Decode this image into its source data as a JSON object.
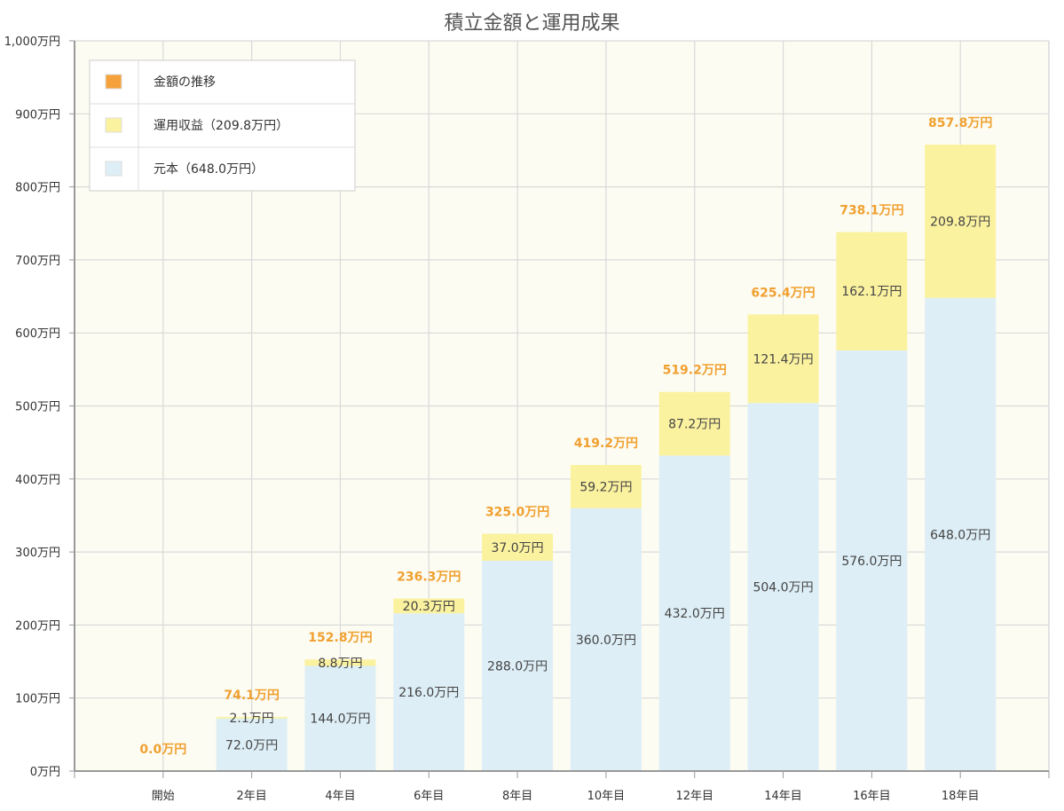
{
  "chart_data": {
    "type": "bar",
    "stacked": true,
    "title": "積立金額と運用成果",
    "xlabel": "",
    "ylabel": "",
    "ylim": [
      0,
      1000
    ],
    "yticks": [
      0,
      100,
      200,
      300,
      400,
      500,
      600,
      700,
      800,
      900,
      1000
    ],
    "ytick_labels": [
      "0万円",
      "100万円",
      "200万円",
      "300万円",
      "400万円",
      "500万円",
      "600万円",
      "700万円",
      "800万円",
      "900万円",
      "1,000万円"
    ],
    "categories": [
      "開始",
      "2年目",
      "4年目",
      "6年目",
      "8年目",
      "10年目",
      "12年目",
      "14年目",
      "16年目",
      "18年目"
    ],
    "series": [
      {
        "name": "元本（648.0万円）",
        "color": "#ddeef6",
        "values": [
          0,
          72.0,
          144.0,
          216.0,
          288.0,
          360.0,
          432.0,
          504.0,
          576.0,
          648.0
        ],
        "labels": [
          "",
          "72.0万円",
          "144.0万円",
          "216.0万円",
          "288.0万円",
          "360.0万円",
          "432.0万円",
          "504.0万円",
          "576.0万円",
          "648.0万円"
        ]
      },
      {
        "name": "運用収益（209.8万円）",
        "color": "#fbf2a0",
        "values": [
          0,
          2.1,
          8.8,
          20.3,
          37.0,
          59.2,
          87.2,
          121.4,
          162.1,
          209.8
        ],
        "labels": [
          "",
          "2.1万円",
          "8.8万円",
          "20.3万円",
          "37.0万円",
          "59.2万円",
          "87.2万円",
          "121.4万円",
          "162.1万円",
          "209.8万円"
        ]
      }
    ],
    "totals": [
      0.0,
      74.1,
      152.8,
      236.3,
      325.0,
      419.2,
      519.2,
      625.4,
      738.1,
      857.8
    ],
    "total_labels": [
      "0.0万円",
      "74.1万円",
      "152.8万円",
      "236.3万円",
      "325.0万円",
      "419.2万円",
      "519.2万円",
      "625.4万円",
      "738.1万円",
      "857.8万円"
    ],
    "legend": [
      {
        "label": "金額の推移",
        "color": "#f6a23c"
      },
      {
        "label": "運用収益（209.8万円）",
        "color": "#fbf2a0"
      },
      {
        "label": "元本（648.0万円）",
        "color": "#ddeef6"
      }
    ],
    "legend_position": "top-left",
    "grid": true,
    "colors": {
      "plot_background": "#fdfcf2",
      "grid": "#d9d9d9",
      "axis": "#999999",
      "total_label": "#f0a030"
    }
  }
}
